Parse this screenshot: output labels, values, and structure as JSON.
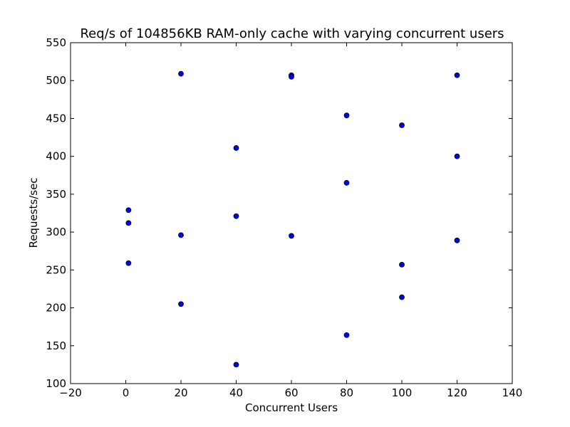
{
  "chart_data": {
    "type": "scatter",
    "title": "Req/s of 104856KB RAM-only cache with varying concurrent users",
    "xlabel": "Concurrent Users",
    "ylabel": "Requests/sec",
    "xlim": [
      -20,
      140
    ],
    "ylim": [
      100,
      550
    ],
    "xticks": [
      -20,
      0,
      20,
      40,
      60,
      80,
      100,
      120,
      140
    ],
    "yticks": [
      100,
      150,
      200,
      250,
      300,
      350,
      400,
      450,
      500,
      550
    ],
    "xtick_labels": [
      "−20",
      "0",
      "20",
      "40",
      "60",
      "80",
      "100",
      "120",
      "140"
    ],
    "ytick_labels": [
      "100",
      "150",
      "200",
      "250",
      "300",
      "350",
      "400",
      "450",
      "500",
      "550"
    ],
    "grid": false,
    "marker_color": "#0000ff",
    "marker_edge_color": "#000000",
    "points": [
      {
        "x": 1,
        "y": 329
      },
      {
        "x": 1,
        "y": 312
      },
      {
        "x": 1,
        "y": 259
      },
      {
        "x": 20,
        "y": 509
      },
      {
        "x": 20,
        "y": 296
      },
      {
        "x": 20,
        "y": 205
      },
      {
        "x": 40,
        "y": 411
      },
      {
        "x": 40,
        "y": 321
      },
      {
        "x": 40,
        "y": 125
      },
      {
        "x": 60,
        "y": 507
      },
      {
        "x": 60,
        "y": 505
      },
      {
        "x": 60,
        "y": 295
      },
      {
        "x": 80,
        "y": 454
      },
      {
        "x": 80,
        "y": 365
      },
      {
        "x": 80,
        "y": 164
      },
      {
        "x": 100,
        "y": 441
      },
      {
        "x": 100,
        "y": 257
      },
      {
        "x": 100,
        "y": 214
      },
      {
        "x": 120,
        "y": 507
      },
      {
        "x": 120,
        "y": 400
      },
      {
        "x": 120,
        "y": 289
      }
    ]
  }
}
